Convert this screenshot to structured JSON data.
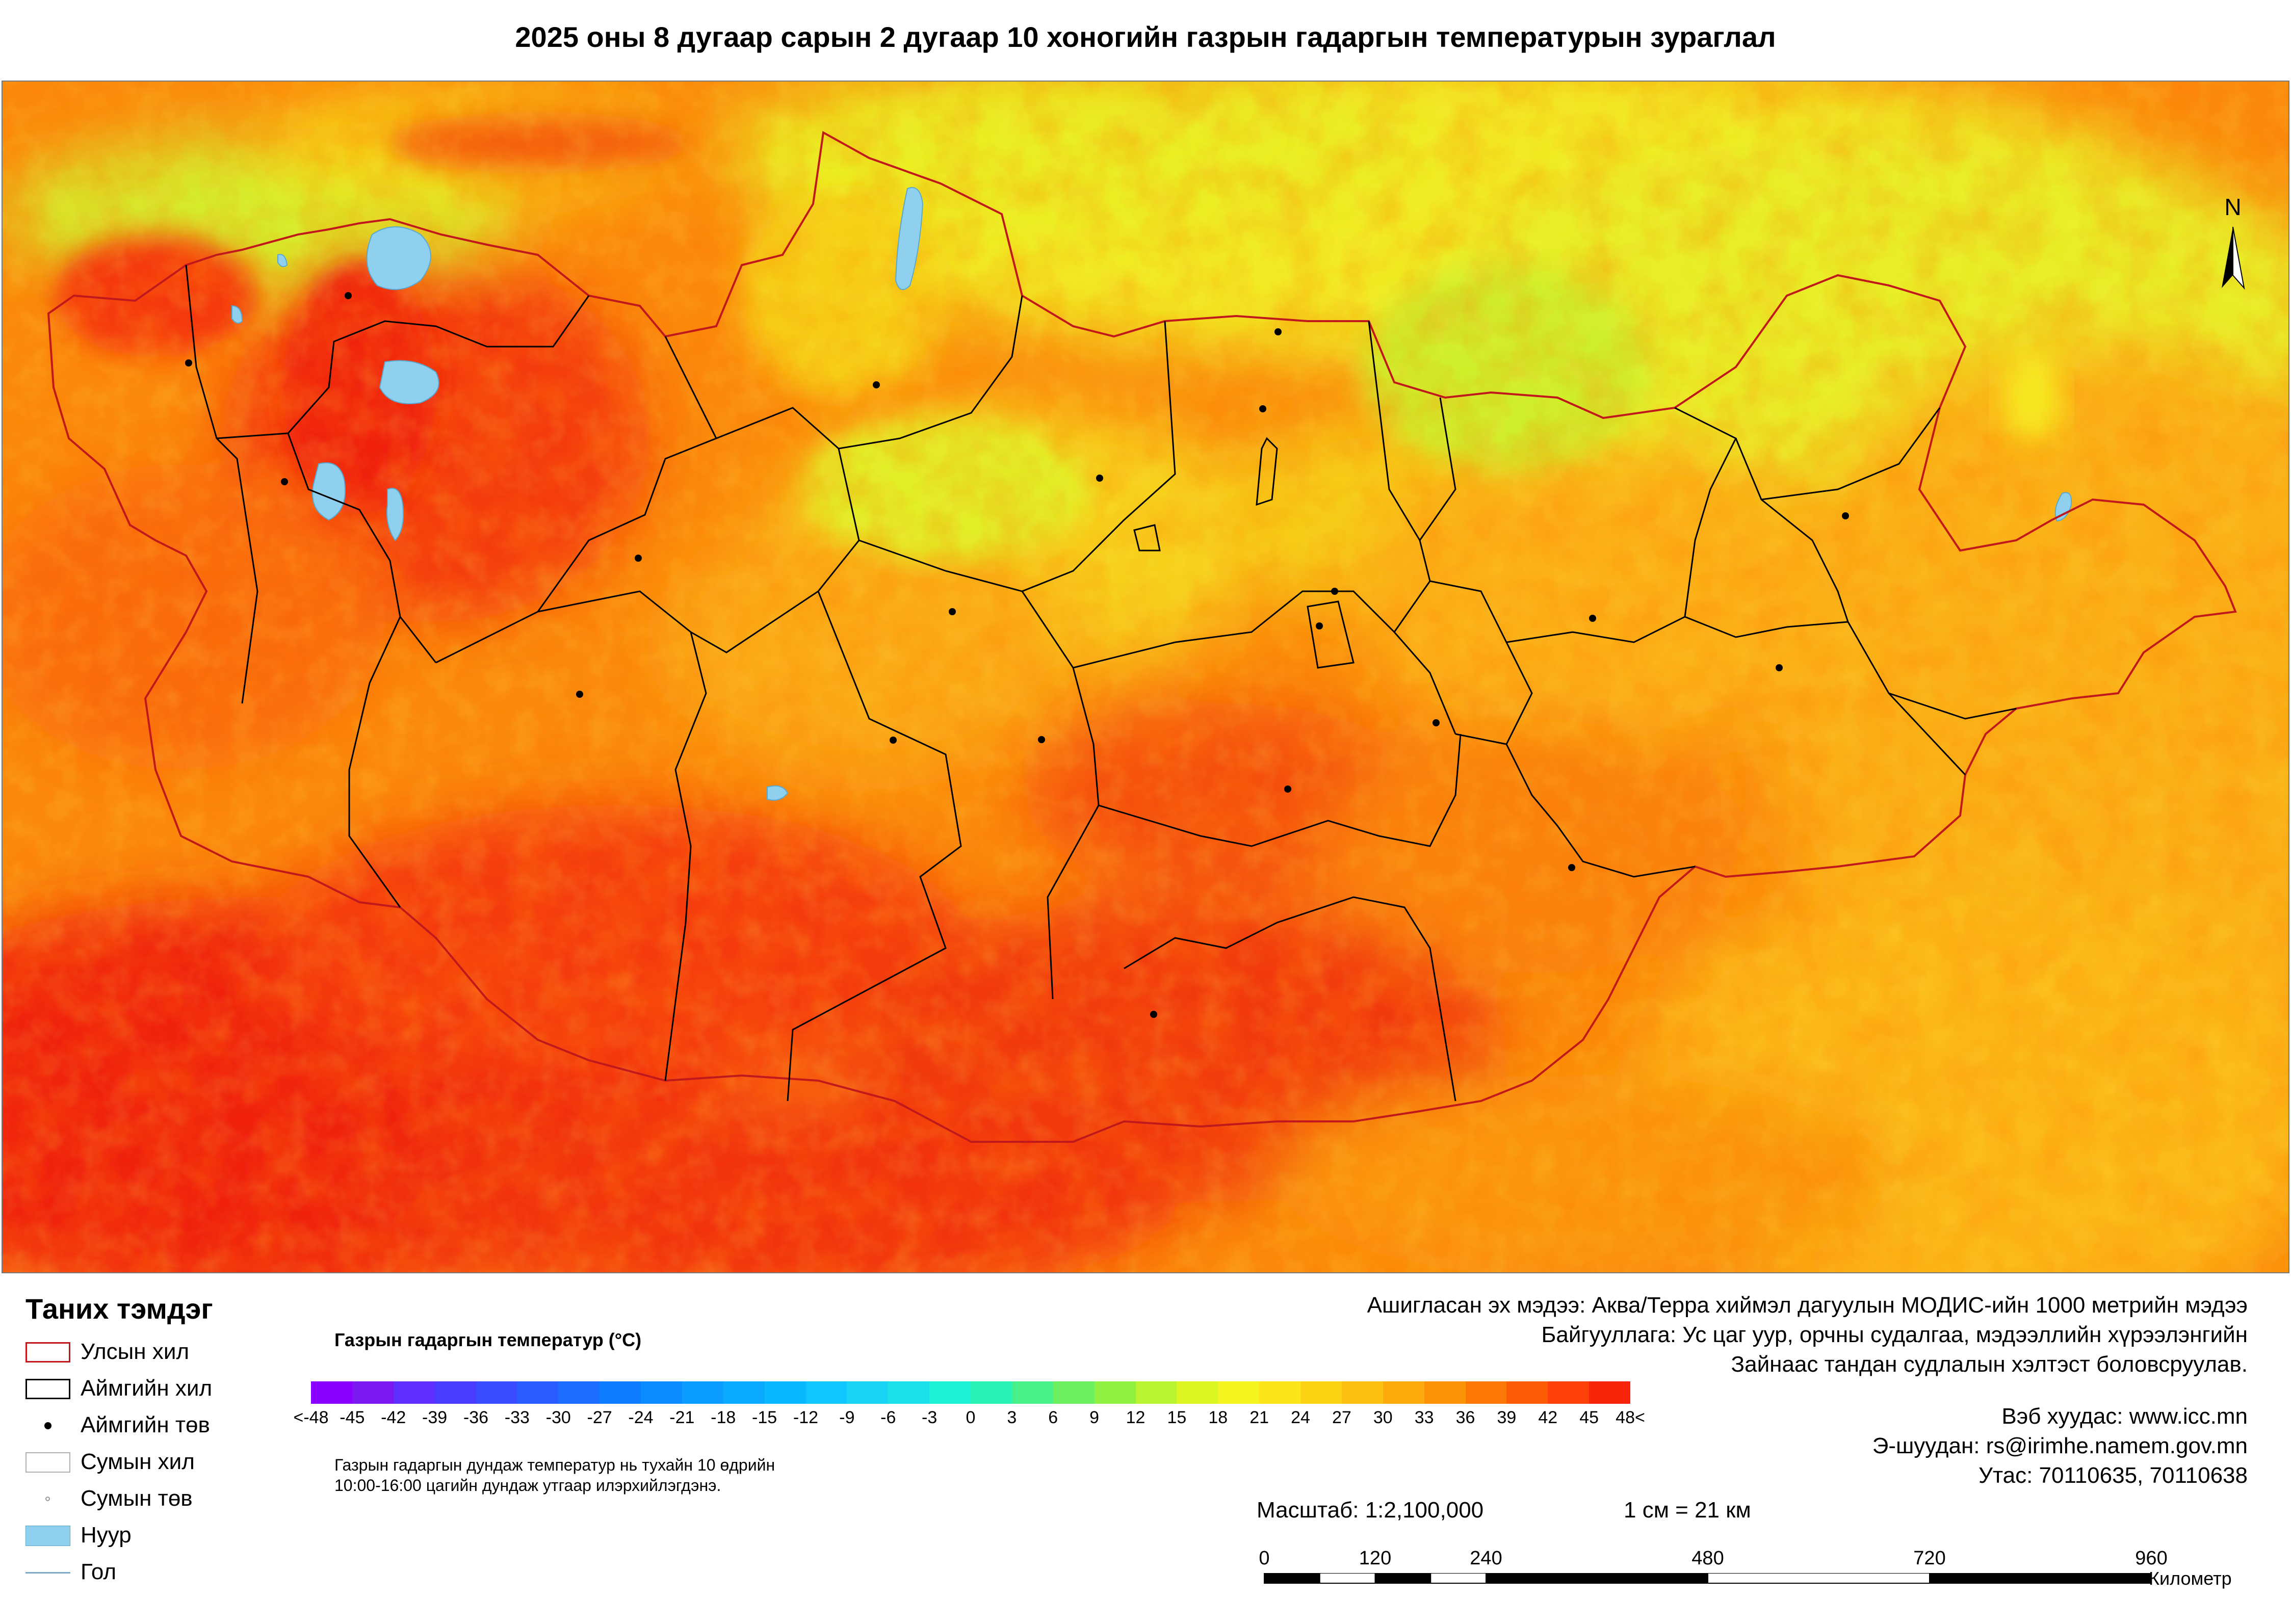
{
  "title": "2025 оны 8 дугаар сарын 2 дугаар 10 хоногийн газрын гадаргын температурын зураглал",
  "north_label": "N",
  "legend": {
    "heading": "Таних тэмдэг",
    "items": [
      {
        "symbol": "country-border",
        "label": "Улсын хил",
        "color": "#c0181b"
      },
      {
        "symbol": "province-border",
        "label": "Аймгийн хил",
        "color": "#000000"
      },
      {
        "symbol": "province-center",
        "label": "Аймгийн төв",
        "color": "#000000"
      },
      {
        "symbol": "soum-border",
        "label": "Сумын хил",
        "color": "#b0b0b0"
      },
      {
        "symbol": "soum-center",
        "label": "Сумын төв",
        "color": "#9a9a9a"
      },
      {
        "symbol": "lake",
        "label": "Нуур",
        "color": "#8fd0ef"
      },
      {
        "symbol": "river",
        "label": "Гол",
        "color": "#7fa9c9"
      }
    ]
  },
  "color_ramp": {
    "title": "Газрын гадаргын температур (°C)",
    "tick_labels": [
      "<-48",
      "-45",
      "-42",
      "-39",
      "-36",
      "-33",
      "-30",
      "-27",
      "-24",
      "-21",
      "-18",
      "-15",
      "-12",
      "-9",
      "-6",
      "-3",
      "0",
      "3",
      "6",
      "9",
      "12",
      "15",
      "18",
      "21",
      "24",
      "27",
      "30",
      "33",
      "36",
      "39",
      "42",
      "45",
      "48<"
    ],
    "colors": [
      "#8a00ff",
      "#7a1af0",
      "#5e2fff",
      "#4a3cff",
      "#3a4cff",
      "#2a5cff",
      "#1c6cff",
      "#0d7cff",
      "#0a8cff",
      "#0a9cff",
      "#0aaaff",
      "#0ab8ff",
      "#10c6ff",
      "#1ad4f6",
      "#1ae2e8",
      "#1ef0d4",
      "#28f2b4",
      "#48f08a",
      "#6cf060",
      "#92f040",
      "#b8f430",
      "#dcf624",
      "#f4f41e",
      "#fce61a",
      "#fcd414",
      "#fcc010",
      "#fcaa0c",
      "#fc9208",
      "#fc7806",
      "#fc5c06",
      "#fc4008",
      "#f8240a"
    ],
    "note_lines": [
      "Газрын гадаргын дундаж температур нь тухайн 10 өдрийн",
      "10:00-16:00 цагийн дундаж утгаар илэрхийлэгдэнэ."
    ]
  },
  "source": {
    "lines": [
      "Ашигласан эх мэдээ: Аква/Терра хиймэл дагуулын МОДИС-ийн 1000 метрийн мэдээ",
      "Байгууллага: Ус цаг уур, орчны судалгаа, мэдээллийн хүрээлэнгийн",
      "Зайнаас тандан судлалын хэлтэст боловсруулав."
    ]
  },
  "contact": {
    "web": "Вэб хуудас: www.icc.mn",
    "email": "Э-шуудан: rs@irimhe.namem.gov.mn",
    "phone": "Утас: 70110635, 70110638"
  },
  "scale": {
    "ratio": "Масштаб: 1:2,100,000",
    "equivalence": "1 см = 21 км",
    "ticks": [
      "0",
      "120",
      "240",
      "480",
      "720",
      "960"
    ],
    "tick_values_km": [
      0,
      120,
      240,
      480,
      720,
      960
    ],
    "unit": "Километр"
  },
  "map_colors": {
    "hot": "#f22a0c",
    "warm": "#fb7d0a",
    "mild": "#fcc314",
    "cool": "#e4ef28",
    "green": "#aaf03a",
    "lake": "#8fd0ef",
    "country_border": "#c0181b"
  }
}
